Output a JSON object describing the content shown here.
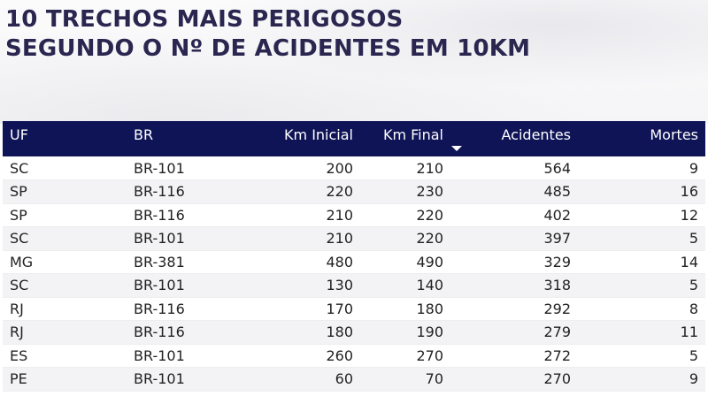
{
  "title": {
    "line1": "10 TRECHOS MAIS PERIGOSOS",
    "line2": "SEGUNDO O Nº DE ACIDENTES EM 10KM"
  },
  "colors": {
    "header_bg": "#0f1457",
    "title_color": "#2a2650"
  },
  "table": {
    "headers": {
      "uf": "UF",
      "br": "BR",
      "km_inicial": "Km Inicial",
      "km_final": "Km Final",
      "acidentes": "Acidentes",
      "mortes": "Mortes"
    },
    "sort_icon": "sort-descending-icon",
    "rows": [
      {
        "uf": "SC",
        "br": "BR-101",
        "km_inicial": "200",
        "km_final": "210",
        "acidentes": "564",
        "mortes": "9"
      },
      {
        "uf": "SP",
        "br": "BR-116",
        "km_inicial": "220",
        "km_final": "230",
        "acidentes": "485",
        "mortes": "16"
      },
      {
        "uf": "SP",
        "br": "BR-116",
        "km_inicial": "210",
        "km_final": "220",
        "acidentes": "402",
        "mortes": "12"
      },
      {
        "uf": "SC",
        "br": "BR-101",
        "km_inicial": "210",
        "km_final": "220",
        "acidentes": "397",
        "mortes": "5"
      },
      {
        "uf": "MG",
        "br": "BR-381",
        "km_inicial": "480",
        "km_final": "490",
        "acidentes": "329",
        "mortes": "14"
      },
      {
        "uf": "SC",
        "br": "BR-101",
        "km_inicial": "130",
        "km_final": "140",
        "acidentes": "318",
        "mortes": "5"
      },
      {
        "uf": "RJ",
        "br": "BR-116",
        "km_inicial": "170",
        "km_final": "180",
        "acidentes": "292",
        "mortes": "8"
      },
      {
        "uf": "RJ",
        "br": "BR-116",
        "km_inicial": "180",
        "km_final": "190",
        "acidentes": "279",
        "mortes": "11"
      },
      {
        "uf": "ES",
        "br": "BR-101",
        "km_inicial": "260",
        "km_final": "270",
        "acidentes": "272",
        "mortes": "5"
      },
      {
        "uf": "PE",
        "br": "BR-101",
        "km_inicial": "60",
        "km_final": "70",
        "acidentes": "270",
        "mortes": "9"
      }
    ]
  }
}
